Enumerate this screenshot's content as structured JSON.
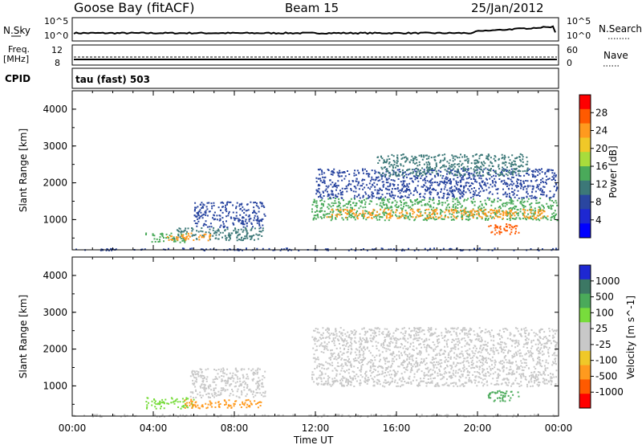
{
  "header": {
    "station": "Goose Bay (fitACF)",
    "beam": "Beam 15",
    "date": "25/Jan/2012"
  },
  "top_panels": {
    "nsky_label": "N.Sky",
    "nsky_ticks": [
      "10^5",
      "10^0"
    ],
    "nsearch_label": "N.Search",
    "nsearch_ticks": [
      "10^5",
      "10^0"
    ],
    "freq_label": "Freq.",
    "freq_unit": "[MHz]",
    "freq_ticks": [
      "12",
      "8"
    ],
    "nave_label": "Nave",
    "nave_ticks": [
      "60",
      "0"
    ],
    "cpid_label": "CPID",
    "cpid_value": "tau (fast) 503"
  },
  "chart_data": [
    {
      "type": "heatmap",
      "name": "power",
      "ylabel": "Slant Range [km]",
      "xlabel": "",
      "colorbar_label": "Power [dB]",
      "colorbar_ticks": [
        "28",
        "24",
        "20",
        "16",
        "12",
        "8",
        "4"
      ],
      "colorbar_colors": [
        "#ff0000",
        "#ff5a00",
        "#ff9a1e",
        "#f0c828",
        "#a8dc3c",
        "#4aaa5a",
        "#3c7878",
        "#2a46a0",
        "#1e28d2",
        "#0000ff"
      ],
      "y_ticks": [
        "4000",
        "3000",
        "2000",
        "1000"
      ],
      "ylim": [
        180,
        4500
      ],
      "xlim": [
        0,
        24
      ],
      "bands": [
        {
          "x0": 3.6,
          "x1": 5.6,
          "y0": 400,
          "y1": 650,
          "level": 16
        },
        {
          "x0": 5.0,
          "x1": 9.4,
          "y0": 450,
          "y1": 800,
          "level": 12
        },
        {
          "x0": 6.0,
          "x1": 9.5,
          "y0": 800,
          "y1": 1500,
          "level": 8
        },
        {
          "x0": 4.6,
          "x1": 6.8,
          "y0": 450,
          "y1": 650,
          "level": 24
        },
        {
          "x0": 11.8,
          "x1": 23.9,
          "y0": 1000,
          "y1": 1600,
          "level": 16
        },
        {
          "x0": 12.5,
          "x1": 23.5,
          "y0": 1050,
          "y1": 1300,
          "level": 24
        },
        {
          "x0": 12.0,
          "x1": 23.9,
          "y0": 1600,
          "y1": 2400,
          "level": 8
        },
        {
          "x0": 15.0,
          "x1": 22.5,
          "y0": 2200,
          "y1": 2800,
          "level": 12
        },
        {
          "x0": 20.5,
          "x1": 22.0,
          "y0": 600,
          "y1": 900,
          "level": 28
        },
        {
          "x0": 0.0,
          "x1": 24.0,
          "y0": 180,
          "y1": 240,
          "level": 8
        }
      ]
    },
    {
      "type": "heatmap",
      "name": "velocity",
      "ylabel": "Slant Range [km]",
      "xlabel": "Time UT",
      "colorbar_label": "Velocity [m s^-1]",
      "colorbar_ticks": [
        "1000",
        "500",
        "100",
        "25",
        "-25",
        "-100",
        "-500",
        "-1000"
      ],
      "colorbar_colors": [
        "#1e28d2",
        "#3c7864",
        "#4aaa5a",
        "#78dc3c",
        "#c8c8c8",
        "#c8c8c8",
        "#f0c828",
        "#ff9a1e",
        "#ff5a00",
        "#ff0000"
      ],
      "x_ticks": [
        "00:00",
        "04:00",
        "08:00",
        "12:00",
        "16:00",
        "20:00",
        "00:00"
      ],
      "y_ticks": [
        "4000",
        "3000",
        "2000",
        "1000"
      ],
      "ylim": [
        180,
        4500
      ],
      "xlim": [
        0,
        24
      ],
      "bands": [
        {
          "x0": 3.6,
          "x1": 6.0,
          "y0": 400,
          "y1": 700,
          "level": 1
        },
        {
          "x0": 5.5,
          "x1": 9.4,
          "y0": 400,
          "y1": 650,
          "level": -3
        },
        {
          "x0": 5.8,
          "x1": 9.5,
          "y0": 700,
          "y1": 1500,
          "level": 0
        },
        {
          "x0": 11.8,
          "x1": 23.9,
          "y0": 1000,
          "y1": 2600,
          "level": 0
        },
        {
          "x0": 20.5,
          "x1": 22.0,
          "y0": 600,
          "y1": 900,
          "level": 2
        },
        {
          "x0": 0.0,
          "x1": 24.0,
          "y0": 180,
          "y1": 240,
          "level": -1
        }
      ]
    }
  ]
}
